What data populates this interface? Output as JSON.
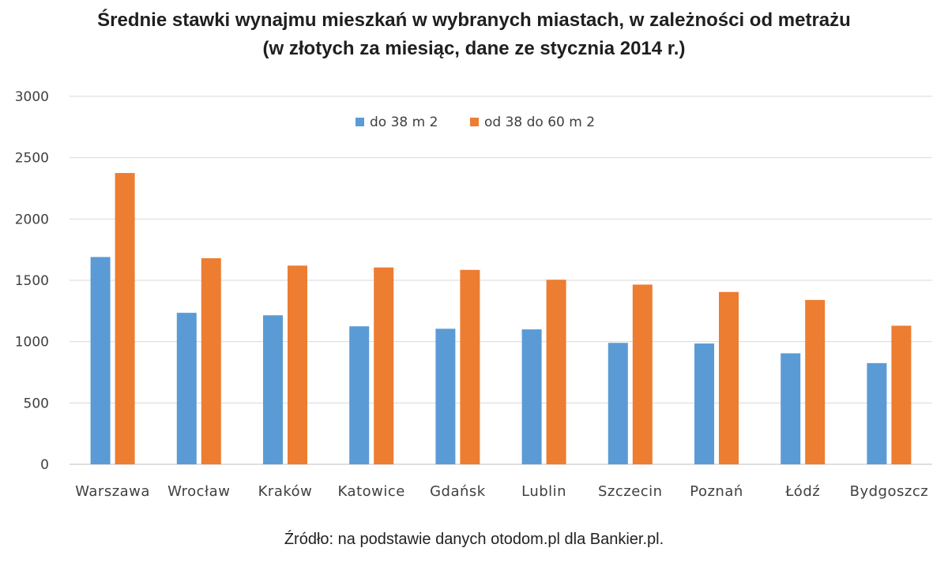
{
  "chart_data": {
    "type": "bar",
    "title": "Średnie stawki wynajmu mieszkań w wybranych miastach, w zależności od metrażu",
    "subtitle": "(w złotych za miesiąc, dane ze stycznia 2014 r.)",
    "categories": [
      "Warszawa",
      "Wrocław",
      "Kraków",
      "Katowice",
      "Gdańsk",
      "Lublin",
      "Szczecin",
      "Poznań",
      "Łódź",
      "Bydgoszcz"
    ],
    "series": [
      {
        "name": "do 38 m 2",
        "color": "#5b9bd5",
        "values": [
          1690,
          1235,
          1215,
          1125,
          1105,
          1100,
          990,
          985,
          905,
          825
        ]
      },
      {
        "name": "od 38 do 60 m 2",
        "color": "#ed7d31",
        "values": [
          2375,
          1680,
          1620,
          1605,
          1585,
          1505,
          1465,
          1405,
          1340,
          1130
        ]
      }
    ],
    "ylim": [
      0,
      3000
    ],
    "yticks": [
      0,
      500,
      1000,
      1500,
      2000,
      2500,
      3000
    ],
    "grid": true,
    "legend_position": "top-center",
    "source": "Źródło: na podstawie danych otodom.pl dla Bankier.pl."
  }
}
